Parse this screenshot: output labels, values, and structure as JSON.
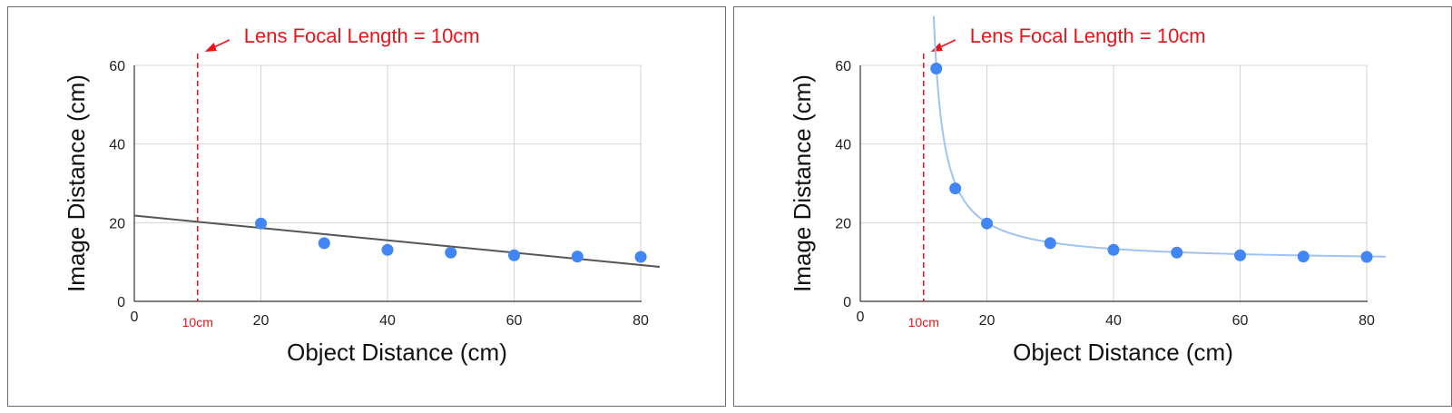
{
  "chart_data": [
    {
      "type": "scatter",
      "title": "",
      "xlabel": "Object Distance (cm)",
      "ylabel": "Image Distance (cm)",
      "xlim": [
        0,
        82
      ],
      "ylim": [
        0,
        60
      ],
      "x_ticks": [
        "0",
        "20",
        "40",
        "60",
        "80"
      ],
      "y_ticks": [
        "0",
        "20",
        "40",
        "60"
      ],
      "grid": true,
      "annotation": "Lens Focal Length = 10cm",
      "focal_marker_label": "10cm",
      "focal_length": 10,
      "points": [
        {
          "x": 20,
          "y": 19.8
        },
        {
          "x": 30,
          "y": 14.8
        },
        {
          "x": 40,
          "y": 13.1
        },
        {
          "x": 50,
          "y": 12.4
        },
        {
          "x": 60,
          "y": 11.7
        },
        {
          "x": 70,
          "y": 11.4
        },
        {
          "x": 80,
          "y": 11.3
        }
      ],
      "trendline": {
        "type": "linear",
        "color": "#555555",
        "x_range": [
          0,
          83
        ],
        "y_at_x0": 21.8,
        "slope": -0.157
      },
      "point_color": "#4285f4"
    },
    {
      "type": "scatter",
      "title": "",
      "xlabel": "Object Distance (cm)",
      "ylabel": "Image Distance (cm)",
      "xlim": [
        0,
        82
      ],
      "ylim": [
        0,
        60
      ],
      "x_ticks": [
        "0",
        "20",
        "40",
        "60",
        "80"
      ],
      "y_ticks": [
        "0",
        "20",
        "40",
        "60"
      ],
      "grid": true,
      "annotation": "Lens Focal Length = 10cm",
      "focal_marker_label": "10cm",
      "focal_length": 10,
      "points": [
        {
          "x": 12,
          "y": 59.2
        },
        {
          "x": 15,
          "y": 28.7
        },
        {
          "x": 20,
          "y": 19.8
        },
        {
          "x": 30,
          "y": 14.8
        },
        {
          "x": 40,
          "y": 13.1
        },
        {
          "x": 50,
          "y": 12.4
        },
        {
          "x": 60,
          "y": 11.7
        },
        {
          "x": 70,
          "y": 11.4
        },
        {
          "x": 80,
          "y": 11.3
        }
      ],
      "trendline": {
        "type": "curve",
        "color": "#9fc3f2",
        "x_range": [
          11.6,
          83
        ],
        "form": "x*10/(x-10)"
      },
      "point_color": "#4285f4"
    }
  ]
}
